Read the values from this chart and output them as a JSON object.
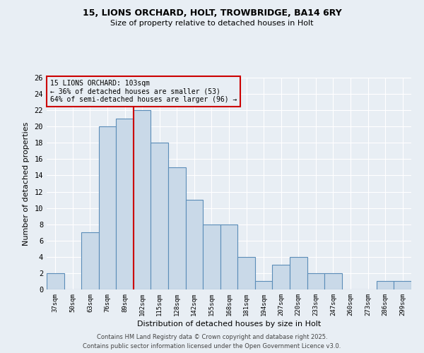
{
  "title_line1": "15, LIONS ORCHARD, HOLT, TROWBRIDGE, BA14 6RY",
  "title_line2": "Size of property relative to detached houses in Holt",
  "categories": [
    "37sqm",
    "50sqm",
    "63sqm",
    "76sqm",
    "89sqm",
    "102sqm",
    "115sqm",
    "128sqm",
    "142sqm",
    "155sqm",
    "168sqm",
    "181sqm",
    "194sqm",
    "207sqm",
    "220sqm",
    "233sqm",
    "247sqm",
    "260sqm",
    "273sqm",
    "286sqm",
    "299sqm"
  ],
  "values": [
    2,
    0,
    7,
    20,
    21,
    22,
    18,
    15,
    11,
    8,
    8,
    4,
    1,
    3,
    4,
    2,
    2,
    0,
    0,
    1,
    1
  ],
  "bar_color": "#c9d9e8",
  "bar_edge_color": "#5b8db8",
  "highlight_line_index": 5,
  "highlight_label": "15 LIONS ORCHARD: 103sqm\n← 36% of detached houses are smaller (53)\n64% of semi-detached houses are larger (96) →",
  "xlabel": "Distribution of detached houses by size in Holt",
  "ylabel": "Number of detached properties",
  "ylim": [
    0,
    26
  ],
  "yticks": [
    0,
    2,
    4,
    6,
    8,
    10,
    12,
    14,
    16,
    18,
    20,
    22,
    24,
    26
  ],
  "bg_color": "#e8eef4",
  "footer_line1": "Contains HM Land Registry data © Crown copyright and database right 2025.",
  "footer_line2": "Contains public sector information licensed under the Open Government Licence v3.0.",
  "grid_color": "#ffffff",
  "annotation_box_color": "#cc0000"
}
